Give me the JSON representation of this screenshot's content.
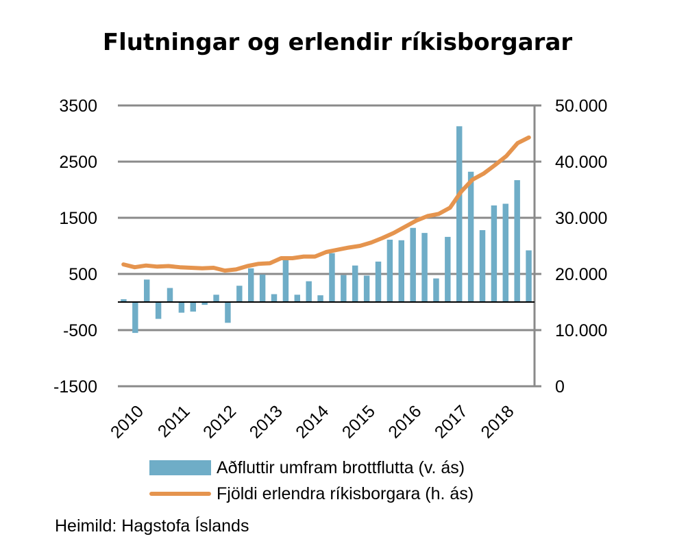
{
  "chart_data": {
    "type": "bar+line",
    "title": "Flutningar og erlendir ríkisborgarar",
    "x_year_labels": [
      "2010",
      "2011",
      "2012",
      "2013",
      "2014",
      "2015",
      "2016",
      "2017",
      "2018"
    ],
    "quarters_per_year": 4,
    "left_axis": {
      "ticks": [
        "3500",
        "2500",
        "1500",
        "500",
        "-500",
        "-1500"
      ],
      "tick_values": [
        3500,
        2500,
        1500,
        500,
        -500,
        -1500
      ],
      "range": [
        -1500,
        3500
      ]
    },
    "right_axis": {
      "ticks": [
        "50.000",
        "40.000",
        "30.000",
        "20.000",
        "10.000",
        "0"
      ],
      "tick_values": [
        50000,
        40000,
        30000,
        20000,
        10000,
        0
      ],
      "range": [
        0,
        50000
      ]
    },
    "series": [
      {
        "name": "Aðfluttir umfram brottflutta (v. ás)",
        "type": "bar",
        "axis": "left",
        "color": "#6fadc7",
        "values": [
          50,
          -550,
          400,
          -300,
          250,
          -190,
          -170,
          -50,
          130,
          -370,
          290,
          600,
          490,
          140,
          750,
          130,
          370,
          120,
          870,
          480,
          650,
          470,
          720,
          1110,
          1100,
          1320,
          1230,
          420,
          1160,
          3130,
          2320,
          1280,
          1720,
          1750,
          2170,
          920
        ]
      },
      {
        "name": "Fjöldi erlendra ríkisborgara (h. ás)",
        "type": "line",
        "axis": "right",
        "color": "#e5944e",
        "values": [
          21700,
          21200,
          21500,
          21300,
          21400,
          21200,
          21100,
          21000,
          21100,
          20600,
          20800,
          21400,
          21800,
          21900,
          22800,
          22800,
          23100,
          23100,
          23900,
          24300,
          24700,
          25000,
          25600,
          26400,
          27300,
          28400,
          29500,
          30300,
          30700,
          31800,
          34700,
          36800,
          37900,
          39400,
          41000,
          43300,
          44300
        ]
      }
    ]
  },
  "legend": {
    "bar_label": "Aðfluttir umfram brottflutta (v. ás)",
    "line_label": "Fjöldi erlendra ríkisborgara (h. ás)"
  },
  "source": "Heimild: Hagstofa Íslands"
}
